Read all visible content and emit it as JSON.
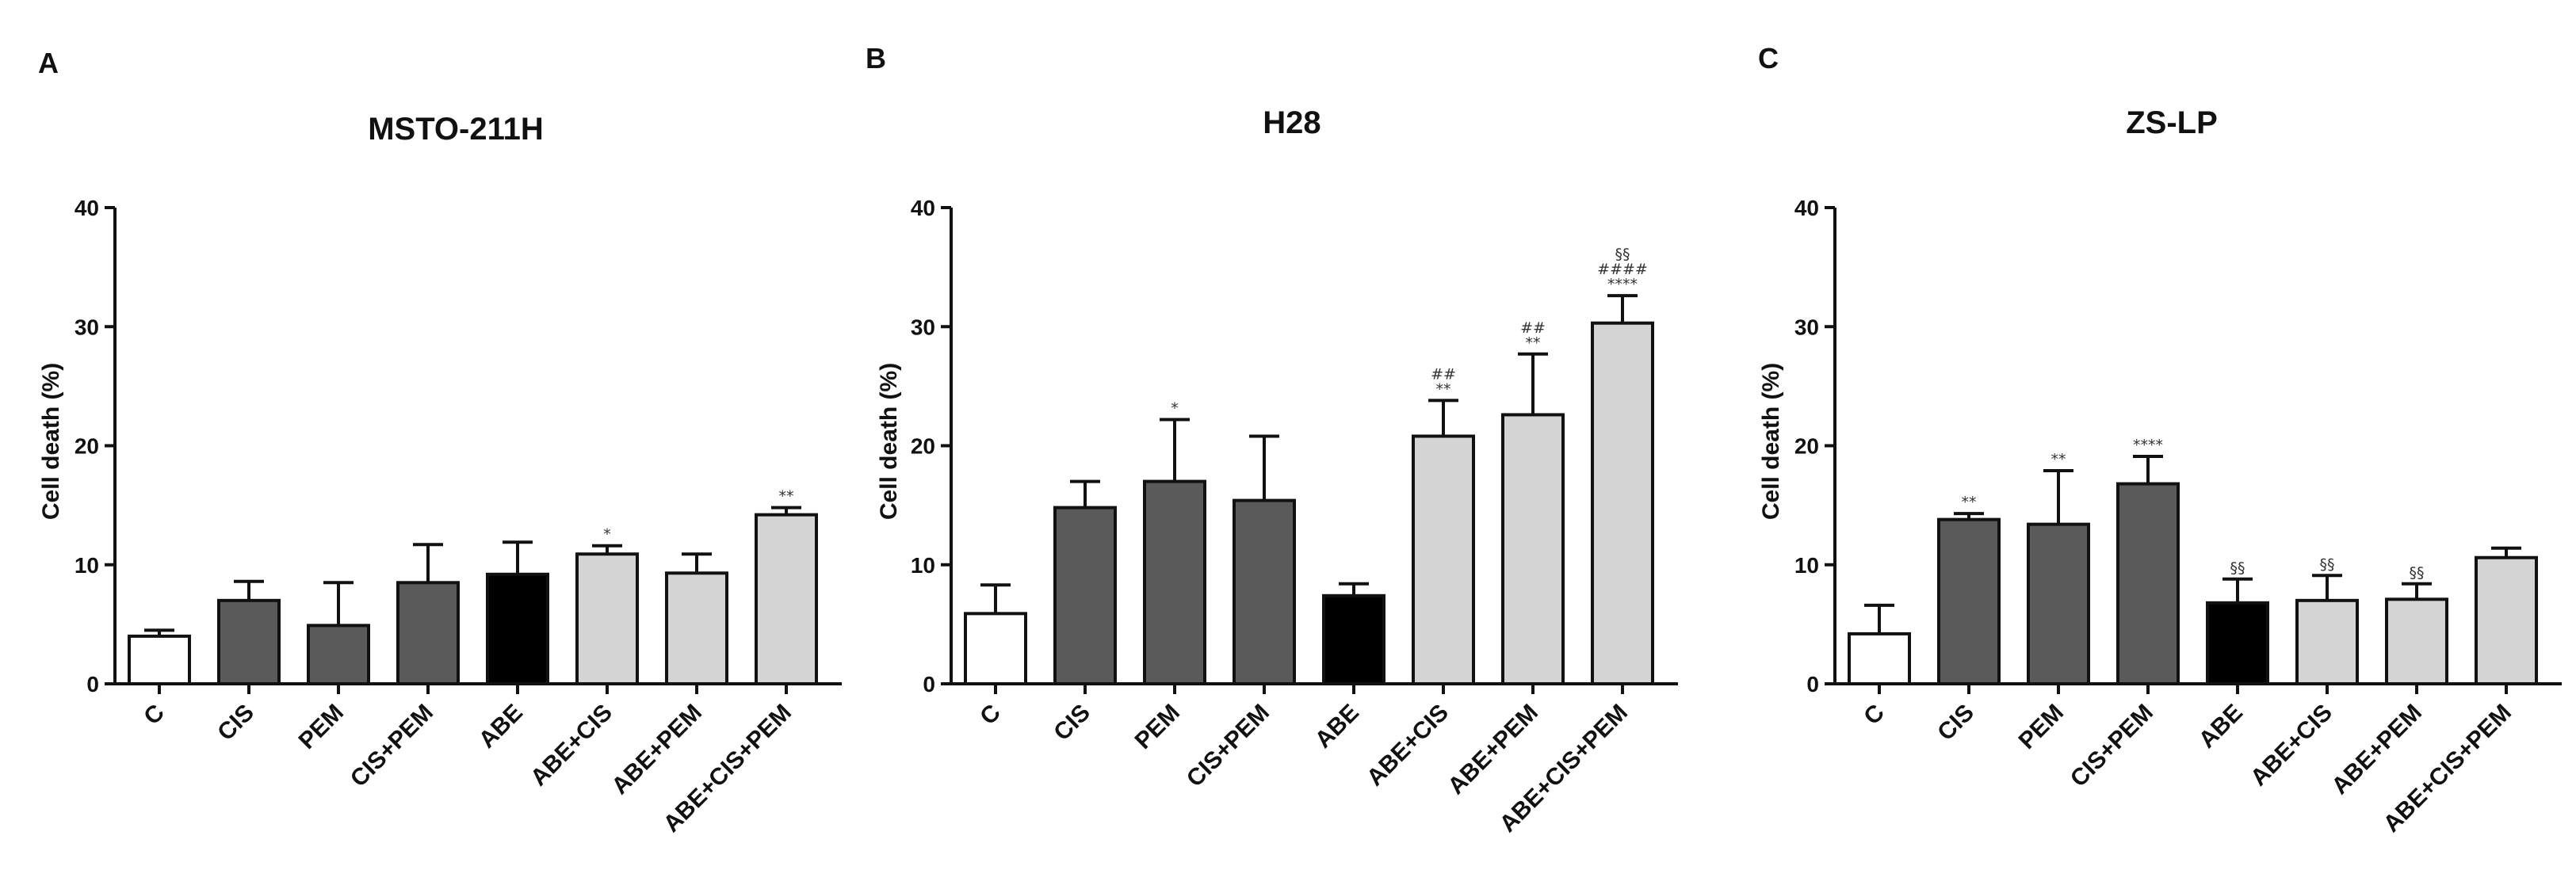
{
  "chart_data": [
    {
      "type": "bar",
      "panel_letter": "A",
      "title": "MSTO-211H",
      "ylabel": "Cell death (%)",
      "xlabel": "",
      "ylim": [
        0,
        40
      ],
      "yticks": [
        "0",
        "10",
        "20",
        "30",
        "40"
      ],
      "grid": false,
      "categories": [
        "C",
        "CIS",
        "PEM",
        "CIS+PEM",
        "ABE",
        "ABE+CIS",
        "ABE+PEM",
        "ABE+CIS+PEM"
      ],
      "values": [
        4.0,
        7.0,
        4.9,
        8.5,
        9.2,
        10.9,
        9.3,
        14.2
      ],
      "errors": [
        0.5,
        1.6,
        3.6,
        3.2,
        2.7,
        0.7,
        1.6,
        0.6
      ],
      "colors": [
        "#ffffff",
        "#5a5a5a",
        "#5a5a5a",
        "#5a5a5a",
        "#000000",
        "#d4d4d4",
        "#d4d4d4",
        "#d4d4d4"
      ],
      "annotations": [
        [],
        [],
        [],
        [],
        [],
        [
          "*"
        ],
        [],
        [
          "**"
        ]
      ]
    },
    {
      "type": "bar",
      "panel_letter": "B",
      "title": "H28",
      "ylabel": "Cell death (%)",
      "xlabel": "",
      "ylim": [
        0,
        40
      ],
      "yticks": [
        "0",
        "10",
        "20",
        "30",
        "40"
      ],
      "grid": false,
      "categories": [
        "C",
        "CIS",
        "PEM",
        "CIS+PEM",
        "ABE",
        "ABE+CIS",
        "ABE+PEM",
        "ABE+CIS+PEM"
      ],
      "values": [
        5.9,
        14.8,
        17.0,
        15.4,
        7.4,
        20.8,
        22.6,
        30.3
      ],
      "errors": [
        2.4,
        2.2,
        5.2,
        5.4,
        1.0,
        3.0,
        5.1,
        2.3
      ],
      "colors": [
        "#ffffff",
        "#5a5a5a",
        "#5a5a5a",
        "#5a5a5a",
        "#000000",
        "#d4d4d4",
        "#d4d4d4",
        "#d4d4d4"
      ],
      "annotations": [
        [],
        [],
        [
          "*"
        ],
        [],
        [],
        [
          "##",
          "**"
        ],
        [
          "##",
          "**"
        ],
        [
          "§§",
          "####",
          "****"
        ]
      ]
    },
    {
      "type": "bar",
      "panel_letter": "C",
      "title": "ZS-LP",
      "ylabel": "Cell death (%)",
      "xlabel": "",
      "ylim": [
        0,
        40
      ],
      "yticks": [
        "0",
        "10",
        "20",
        "30",
        "40"
      ],
      "grid": false,
      "categories": [
        "C",
        "CIS",
        "PEM",
        "CIS+PEM",
        "ABE",
        "ABE+CIS",
        "ABE+PEM",
        "ABE+CIS+PEM"
      ],
      "values": [
        4.2,
        13.8,
        13.4,
        16.8,
        6.8,
        7.0,
        7.1,
        10.6
      ],
      "errors": [
        2.4,
        0.5,
        4.5,
        2.3,
        2.0,
        2.1,
        1.3,
        0.8
      ],
      "colors": [
        "#ffffff",
        "#5a5a5a",
        "#5a5a5a",
        "#5a5a5a",
        "#000000",
        "#d4d4d4",
        "#d4d4d4",
        "#d4d4d4"
      ],
      "annotations": [
        [],
        [
          "**"
        ],
        [
          "**"
        ],
        [
          "****"
        ],
        [
          "§§"
        ],
        [
          "§§"
        ],
        [
          "§§"
        ],
        []
      ]
    }
  ]
}
